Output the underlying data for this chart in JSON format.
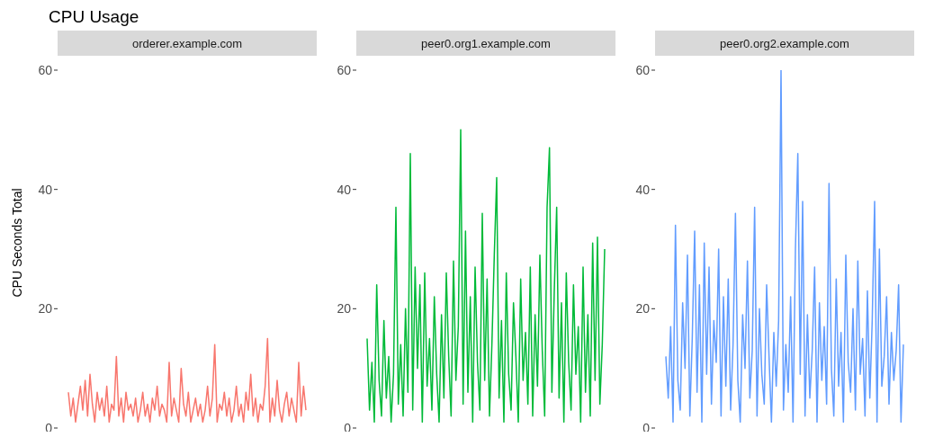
{
  "chart_data": [
    {
      "type": "line",
      "title": "CPU Usage",
      "ylabel": "CPU Seconds Total",
      "categories": [
        null,
        null,
        null,
        null,
        null,
        null,
        null,
        null,
        null,
        null,
        null,
        null,
        null,
        null,
        null,
        null,
        null,
        null,
        null,
        null,
        null,
        null,
        null,
        null,
        null,
        null,
        null,
        null,
        null,
        null,
        null,
        null,
        null,
        null,
        null,
        null,
        null,
        null,
        null,
        null,
        null,
        null,
        null,
        null,
        null,
        null,
        null,
        null,
        null,
        null,
        null,
        null,
        null,
        null,
        null,
        null,
        null,
        null,
        null,
        null,
        null,
        null,
        null,
        null,
        null,
        null,
        null,
        null,
        null,
        null,
        null,
        null,
        null,
        null,
        null,
        null,
        null,
        null,
        null,
        null,
        null,
        null,
        null,
        null,
        null,
        null,
        null,
        null,
        null,
        null,
        null,
        null,
        null,
        null,
        null,
        null,
        null,
        null,
        null,
        null
      ],
      "ylim": [
        0,
        60
      ],
      "yticks": [
        0,
        20,
        40,
        60
      ],
      "tick_labels": "y",
      "grid": false,
      "series": [
        {
          "name": "orderer.example.com",
          "color": "#f8766d",
          "values": [
            6,
            2,
            5,
            1,
            4,
            7,
            3,
            8,
            2,
            9,
            4,
            1,
            6,
            3,
            5,
            2,
            7,
            1,
            4,
            3,
            12,
            2,
            5,
            1,
            6,
            3,
            4,
            2,
            5,
            1,
            3,
            6,
            2,
            4,
            1,
            5,
            3,
            7,
            2,
            4,
            3,
            1,
            11,
            2,
            5,
            3,
            1,
            10,
            4,
            2,
            6,
            1,
            3,
            5,
            2,
            4,
            1,
            3,
            7,
            2,
            5,
            14,
            1,
            4,
            3,
            6,
            2,
            5,
            1,
            3,
            7,
            2,
            4,
            1,
            6,
            3,
            9,
            2,
            5,
            1,
            4,
            3,
            7,
            15,
            1,
            5,
            2,
            8,
            3,
            1,
            4,
            6,
            2,
            5,
            3,
            1,
            11,
            2,
            7,
            3
          ]
        }
      ]
    },
    {
      "type": "line",
      "categories": [
        null,
        null,
        null,
        null,
        null,
        null,
        null,
        null,
        null,
        null,
        null,
        null,
        null,
        null,
        null,
        null,
        null,
        null,
        null,
        null,
        null,
        null,
        null,
        null,
        null,
        null,
        null,
        null,
        null,
        null,
        null,
        null,
        null,
        null,
        null,
        null,
        null,
        null,
        null,
        null,
        null,
        null,
        null,
        null,
        null,
        null,
        null,
        null,
        null,
        null,
        null,
        null,
        null,
        null,
        null,
        null,
        null,
        null,
        null,
        null,
        null,
        null,
        null,
        null,
        null,
        null,
        null,
        null,
        null,
        null,
        null,
        null,
        null,
        null,
        null,
        null,
        null,
        null,
        null,
        null,
        null,
        null,
        null,
        null,
        null,
        null,
        null,
        null,
        null,
        null,
        null,
        null,
        null,
        null,
        null,
        null,
        null,
        null,
        null,
        null
      ],
      "ylim": [
        0,
        60
      ],
      "yticks": [
        0,
        20,
        40,
        60
      ],
      "tick_labels": "y",
      "grid": false,
      "series": [
        {
          "name": "peer0.org1.example.com",
          "color": "#00ba38",
          "values": [
            15,
            3,
            11,
            1,
            24,
            8,
            2,
            18,
            5,
            12,
            1,
            9,
            37,
            4,
            14,
            2,
            20,
            6,
            46,
            3,
            27,
            10,
            24,
            1,
            26,
            7,
            15,
            3,
            22,
            9,
            1,
            19,
            5,
            26,
            12,
            2,
            28,
            8,
            17,
            50,
            4,
            33,
            6,
            22,
            1,
            27,
            11,
            3,
            36,
            8,
            25,
            2,
            14,
            29,
            42,
            5,
            18,
            1,
            26,
            9,
            3,
            21,
            12,
            1,
            25,
            8,
            16,
            4,
            27,
            2,
            19,
            7,
            29,
            13,
            2,
            37,
            47,
            6,
            23,
            37,
            5,
            21,
            1,
            26,
            11,
            3,
            24,
            9,
            17,
            1,
            27,
            6,
            19,
            2,
            31,
            8,
            32,
            4,
            14,
            30
          ]
        }
      ]
    },
    {
      "type": "line",
      "categories": [
        null,
        null,
        null,
        null,
        null,
        null,
        null,
        null,
        null,
        null,
        null,
        null,
        null,
        null,
        null,
        null,
        null,
        null,
        null,
        null,
        null,
        null,
        null,
        null,
        null,
        null,
        null,
        null,
        null,
        null,
        null,
        null,
        null,
        null,
        null,
        null,
        null,
        null,
        null,
        null,
        null,
        null,
        null,
        null,
        null,
        null,
        null,
        null,
        null,
        null,
        null,
        null,
        null,
        null,
        null,
        null,
        null,
        null,
        null,
        null,
        null,
        null,
        null,
        null,
        null,
        null,
        null,
        null,
        null,
        null,
        null,
        null,
        null,
        null,
        null,
        null,
        null,
        null,
        null,
        null,
        null,
        null,
        null,
        null,
        null,
        null,
        null,
        null,
        null,
        null,
        null,
        null,
        null,
        null,
        null,
        null,
        null,
        null,
        null,
        null
      ],
      "ylim": [
        0,
        60
      ],
      "yticks": [
        0,
        20,
        40,
        60
      ],
      "tick_labels": "y",
      "grid": false,
      "series": [
        {
          "name": "peer0.org2.example.com",
          "color": "#619cff",
          "values": [
            12,
            5,
            17,
            1,
            34,
            8,
            3,
            21,
            10,
            29,
            2,
            15,
            33,
            6,
            24,
            1,
            31,
            9,
            27,
            4,
            18,
            11,
            30,
            2,
            22,
            7,
            25,
            3,
            14,
            36,
            8,
            1,
            19,
            10,
            28,
            5,
            13,
            37,
            2,
            20,
            9,
            4,
            24,
            12,
            1,
            16,
            7,
            18,
            60,
            3,
            14,
            6,
            22,
            1,
            30,
            46,
            9,
            38,
            2,
            19,
            5,
            13,
            27,
            1,
            21,
            8,
            17,
            4,
            41,
            10,
            2,
            25,
            7,
            16,
            1,
            29,
            11,
            6,
            20,
            3,
            28,
            9,
            15,
            2,
            23,
            5,
            18,
            38,
            1,
            30,
            7,
            12,
            22,
            4,
            16,
            8,
            13,
            24,
            1,
            14
          ]
        }
      ]
    }
  ]
}
